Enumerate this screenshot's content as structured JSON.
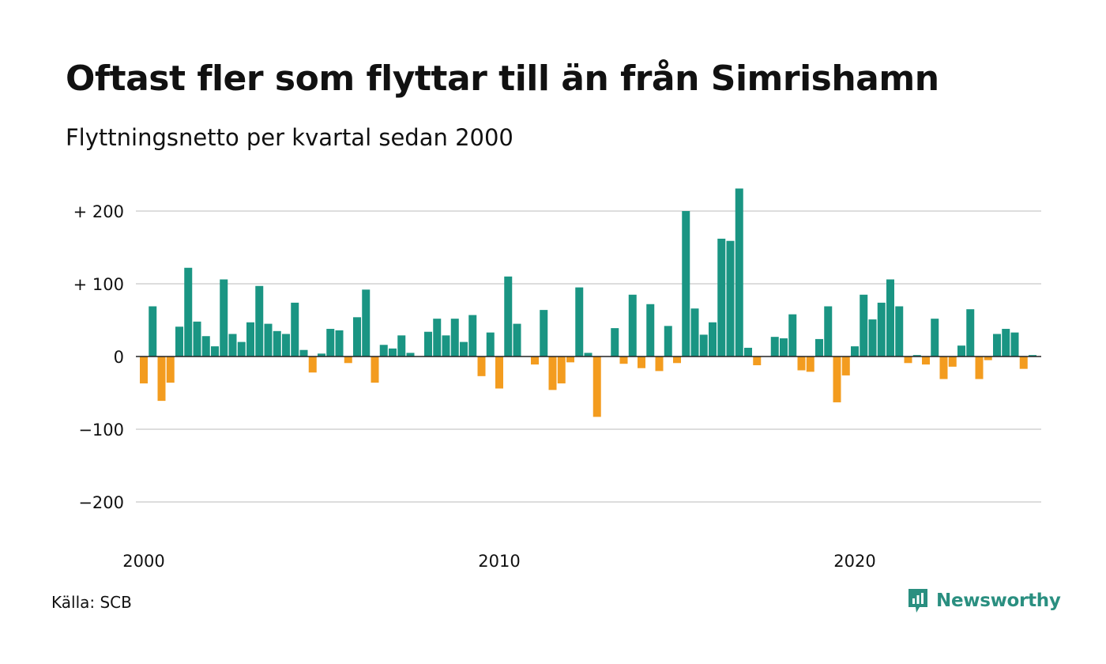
{
  "header": {
    "title": "Oftast fler som flyttar till än från Simrishamn",
    "subtitle": "Flyttningsnetto per kvartal sedan 2000"
  },
  "footer": {
    "source": "Källa: SCB",
    "brand": "Newsworthy"
  },
  "colors": {
    "positive": "#1a9583",
    "negative": "#f39c1f",
    "gridline": "#dddddd",
    "zeroline": "#222222",
    "brand": "#2a8f80"
  },
  "icons": {
    "brand_logo": "newsworthy-logo-icon"
  },
  "chart_data": {
    "type": "bar",
    "title": "Oftast fler som flyttar till än från Simrishamn",
    "subtitle": "Flyttningsnetto per kvartal sedan 2000",
    "xlabel": "",
    "ylabel": "",
    "ylim": [
      -235,
      235
    ],
    "x_start": "2000-Q1",
    "x_end": "2024-Q4",
    "y_ticks": [
      {
        "value": 200,
        "label": "+ 200"
      },
      {
        "value": 100,
        "label": "+ 100"
      },
      {
        "value": 0,
        "label": "0"
      },
      {
        "value": -100,
        "label": "−100"
      },
      {
        "value": -200,
        "label": "−200"
      }
    ],
    "x_ticks": [
      {
        "value": "2000-Q1",
        "label": "2000"
      },
      {
        "value": "2010-Q1",
        "label": "2010"
      },
      {
        "value": "2020-Q1",
        "label": "2020"
      }
    ],
    "grid": true,
    "categories": [
      "2000-Q1",
      "2000-Q2",
      "2000-Q3",
      "2000-Q4",
      "2001-Q1",
      "2001-Q2",
      "2001-Q3",
      "2001-Q4",
      "2002-Q1",
      "2002-Q2",
      "2002-Q3",
      "2002-Q4",
      "2003-Q1",
      "2003-Q2",
      "2003-Q3",
      "2003-Q4",
      "2004-Q1",
      "2004-Q2",
      "2004-Q3",
      "2004-Q4",
      "2005-Q1",
      "2005-Q2",
      "2005-Q3",
      "2005-Q4",
      "2006-Q1",
      "2006-Q2",
      "2006-Q3",
      "2006-Q4",
      "2007-Q1",
      "2007-Q2",
      "2007-Q3",
      "2007-Q4",
      "2008-Q1",
      "2008-Q2",
      "2008-Q3",
      "2008-Q4",
      "2009-Q1",
      "2009-Q2",
      "2009-Q3",
      "2009-Q4",
      "2010-Q1",
      "2010-Q2",
      "2010-Q3",
      "2010-Q4",
      "2011-Q1",
      "2011-Q2",
      "2011-Q3",
      "2011-Q4",
      "2012-Q1",
      "2012-Q2",
      "2012-Q3",
      "2012-Q4",
      "2013-Q1",
      "2013-Q2",
      "2013-Q3",
      "2013-Q4",
      "2014-Q1",
      "2014-Q2",
      "2014-Q3",
      "2014-Q4",
      "2015-Q1",
      "2015-Q2",
      "2015-Q3",
      "2015-Q4",
      "2016-Q1",
      "2016-Q2",
      "2016-Q3",
      "2016-Q4",
      "2017-Q1",
      "2017-Q2",
      "2017-Q3",
      "2017-Q4",
      "2018-Q1",
      "2018-Q2",
      "2018-Q3",
      "2018-Q4",
      "2019-Q1",
      "2019-Q2",
      "2019-Q3",
      "2019-Q4",
      "2020-Q1",
      "2020-Q2",
      "2020-Q3",
      "2020-Q4",
      "2021-Q1",
      "2021-Q2",
      "2021-Q3",
      "2021-Q4",
      "2022-Q1",
      "2022-Q2",
      "2022-Q3",
      "2022-Q4",
      "2023-Q1",
      "2023-Q2",
      "2023-Q3",
      "2023-Q4",
      "2024-Q1",
      "2024-Q2",
      "2024-Q3",
      "2024-Q4"
    ],
    "values": [
      -37,
      69,
      -61,
      -36,
      41,
      122,
      48,
      28,
      14,
      106,
      31,
      20,
      47,
      97,
      45,
      35,
      31,
      74,
      9,
      -22,
      4,
      38,
      36,
      -9,
      54,
      92,
      -36,
      16,
      11,
      29,
      5,
      0,
      34,
      52,
      29,
      52,
      20,
      57,
      -27,
      33,
      -44,
      110,
      45,
      0,
      -11,
      64,
      -46,
      -37,
      -8,
      95,
      5,
      -83,
      0,
      39,
      -10,
      85,
      -16,
      72,
      -20,
      42,
      -9,
      200,
      66,
      30,
      47,
      162,
      159,
      231,
      12,
      -12,
      0,
      27,
      25,
      58,
      -19,
      -21,
      24,
      69,
      -63,
      -26,
      14,
      85,
      51,
      74,
      106,
      69,
      -9,
      2,
      -11,
      52,
      -31,
      -14,
      15,
      65,
      -31,
      -5,
      31,
      38,
      33,
      -17
    ],
    "extra_bar": {
      "category": "2025-Q1",
      "value": 2
    }
  }
}
